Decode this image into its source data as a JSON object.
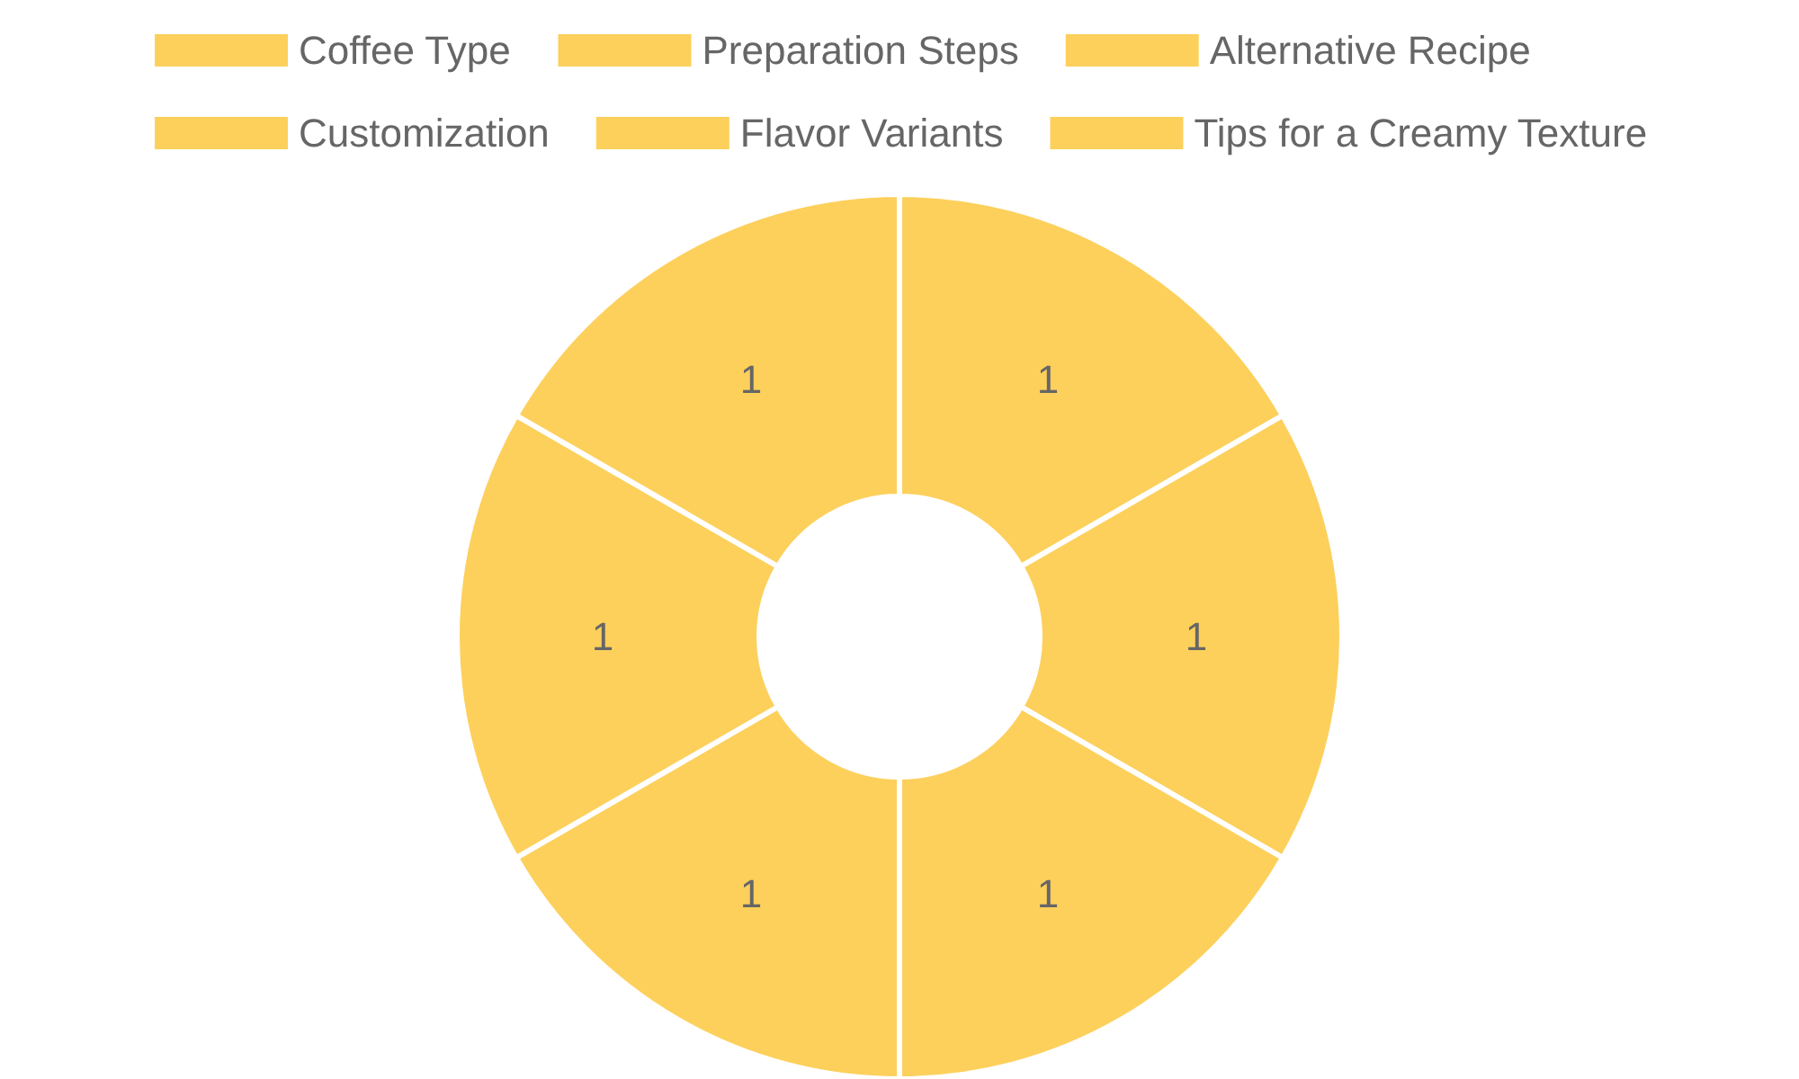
{
  "chart_data": {
    "type": "donut",
    "categories": [
      "Coffee Type",
      "Preparation Steps",
      "Alternative Recipe",
      "Customization",
      "Flavor Variants",
      "Tips for a Creamy Texture"
    ],
    "values": [
      1,
      1,
      1,
      1,
      1,
      1
    ],
    "colors": [
      "#fdd05c",
      "#fdd05c",
      "#fdd05c",
      "#fdd05c",
      "#fdd05c",
      "#fdd05c"
    ],
    "data_labels": true,
    "legend": "top"
  }
}
